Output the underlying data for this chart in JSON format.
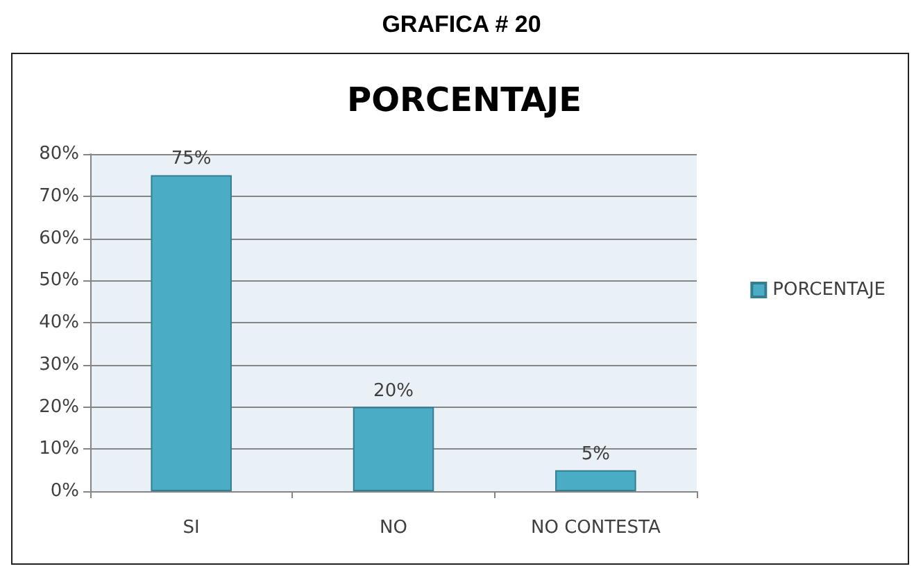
{
  "chart_data": {
    "type": "bar",
    "title": "GRAFICA # 20",
    "subtitle": "PORCENTAJE",
    "categories": [
      "SI",
      "NO",
      "NO CONTESTA"
    ],
    "series": [
      {
        "name": "PORCENTAJE",
        "color": "#4bacc6",
        "values": [
          75,
          20,
          5
        ],
        "value_labels": [
          "75%",
          "20%",
          "5%"
        ]
      }
    ],
    "ylim": [
      0,
      80
    ],
    "yticks": [
      {
        "value": 0,
        "label": "0%"
      },
      {
        "value": 10,
        "label": "10%"
      },
      {
        "value": 20,
        "label": "20%"
      },
      {
        "value": 30,
        "label": "30%"
      },
      {
        "value": 40,
        "label": "40%"
      },
      {
        "value": 50,
        "label": "50%"
      },
      {
        "value": 60,
        "label": "60%"
      },
      {
        "value": 70,
        "label": "70%"
      },
      {
        "value": 80,
        "label": "80%"
      }
    ],
    "grid": "y",
    "legend": "right"
  }
}
